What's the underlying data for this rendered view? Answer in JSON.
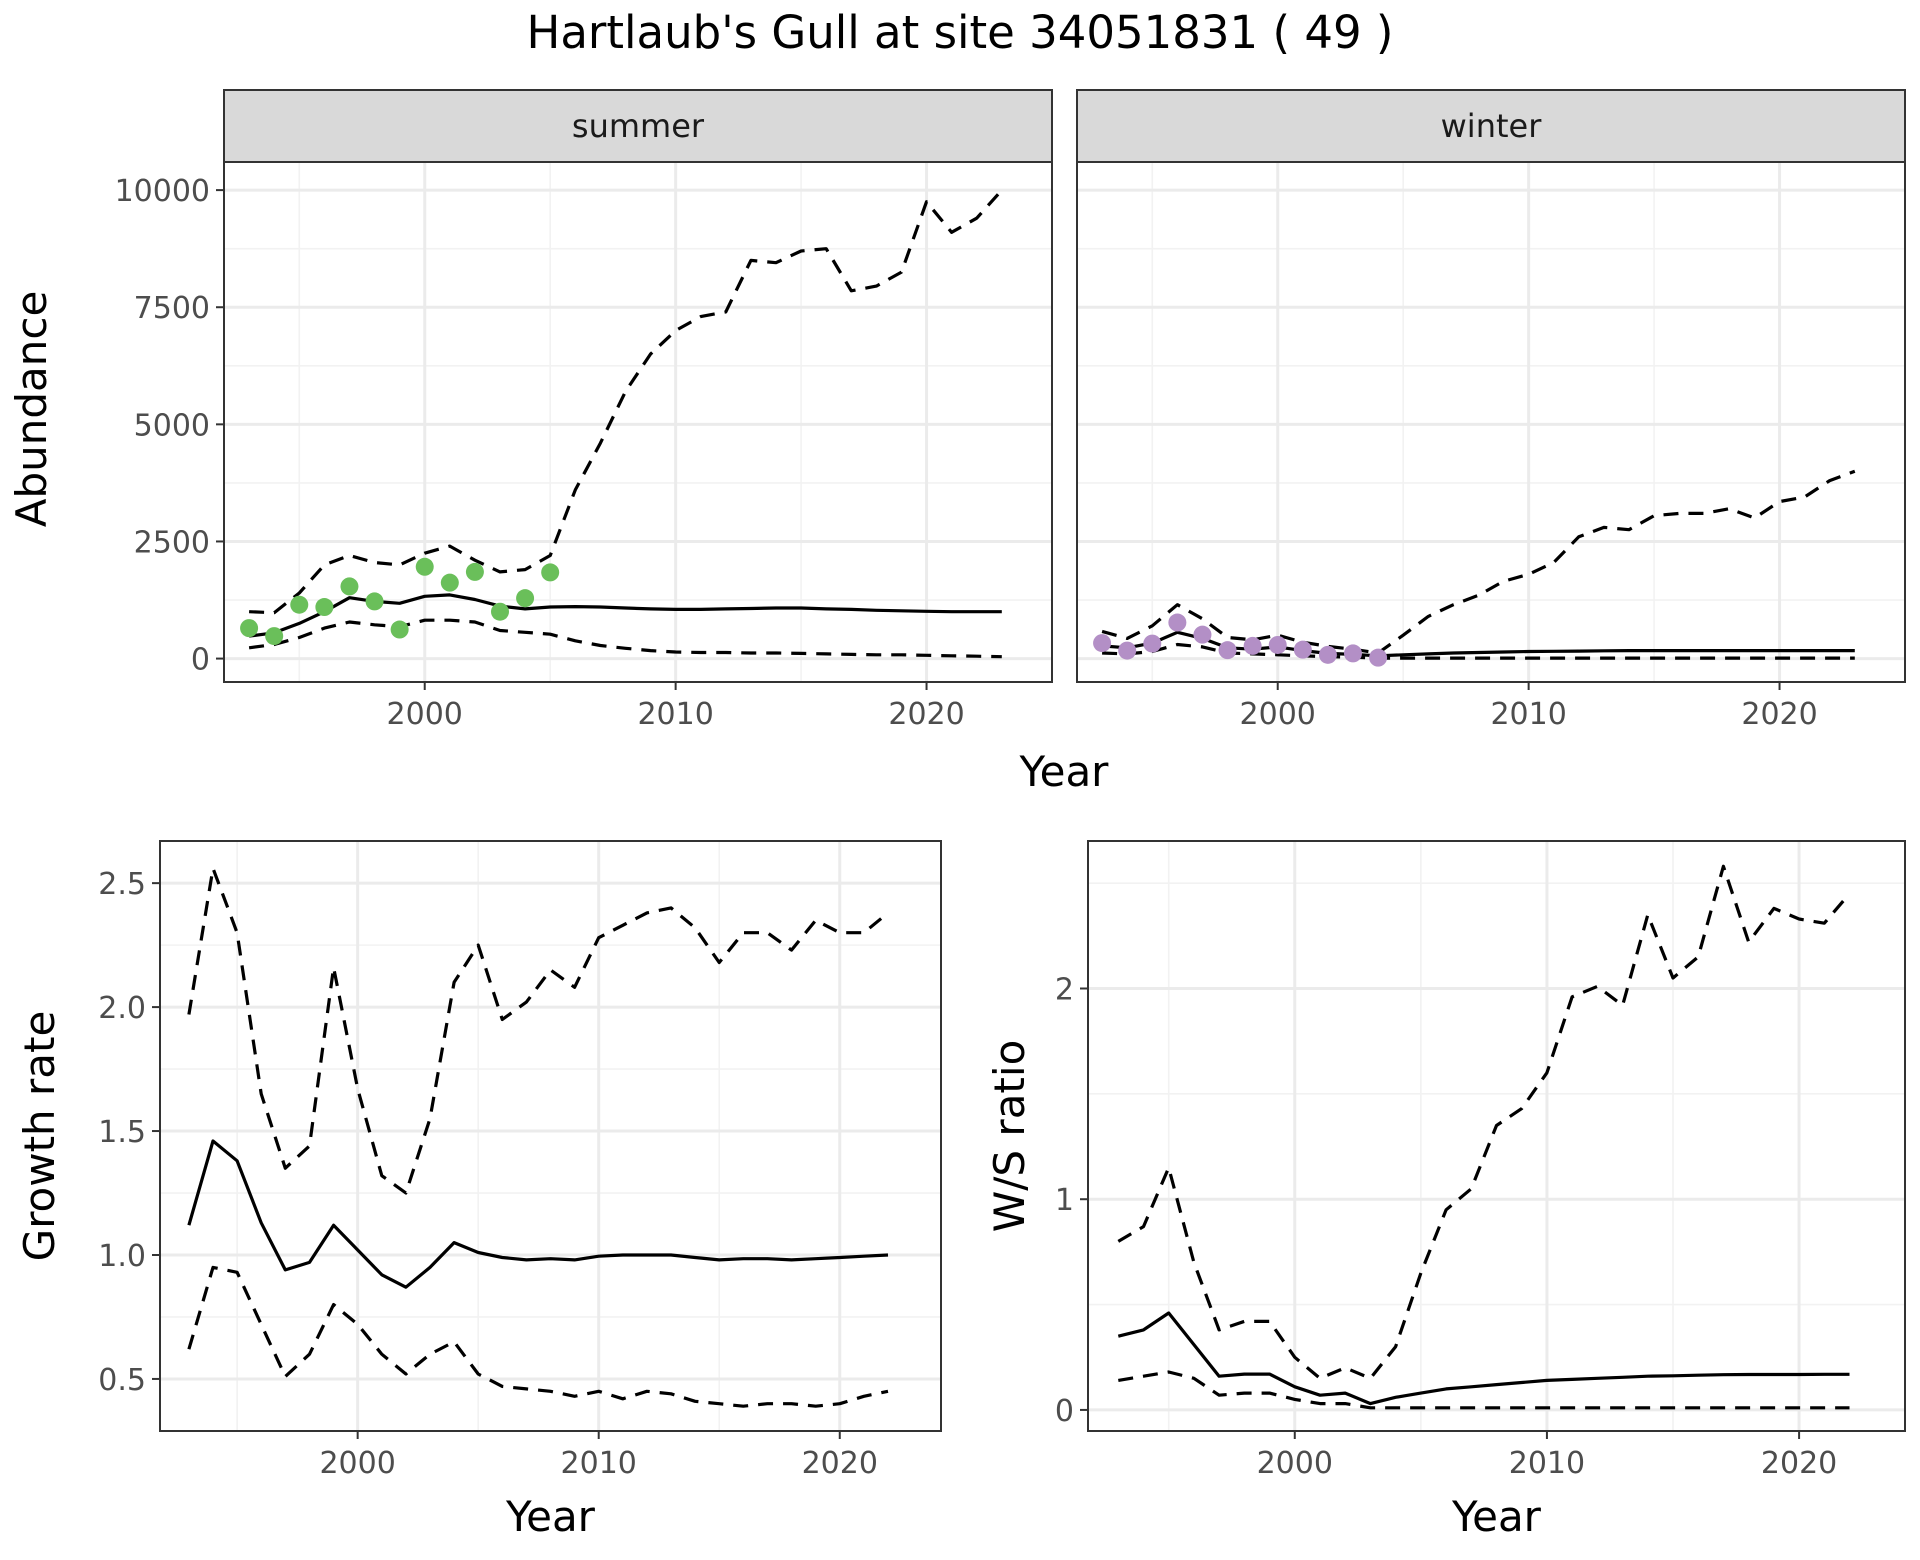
{
  "title": "Hartlaub's Gull at site 34051831 ( 49 )",
  "colors": {
    "summer_points": "#6abf5a",
    "winter_points": "#b38fc6",
    "lines": "#000000",
    "strip": "#d9d9d9"
  },
  "chart_data": [
    {
      "type": "line",
      "id": "summer",
      "strip_label": "summer",
      "xlabel": "Year",
      "ylabel": "Abundance",
      "xlim": [
        1992,
        2025
      ],
      "ylim": [
        -500,
        10600
      ],
      "xticks": [
        2000,
        2010,
        2020
      ],
      "yticks": [
        0,
        2500,
        5000,
        7500,
        10000
      ],
      "grid": true,
      "x": [
        1993,
        1994,
        1995,
        1996,
        1997,
        1998,
        1999,
        2000,
        2001,
        2002,
        2003,
        2004,
        2005,
        2006,
        2007,
        2008,
        2009,
        2010,
        2011,
        2012,
        2013,
        2014,
        2015,
        2016,
        2017,
        2018,
        2019,
        2020,
        2021,
        2022,
        2023
      ],
      "series": [
        {
          "role": "upper",
          "values": [
            1000,
            980,
            1400,
            2000,
            2200,
            2050,
            2000,
            2250,
            2400,
            2100,
            1850,
            1900,
            2200,
            3600,
            4600,
            5700,
            6500,
            7000,
            7300,
            7400,
            8500,
            8450,
            8700,
            8750,
            7850,
            7950,
            8250,
            9750,
            9100,
            9400,
            10000
          ]
        },
        {
          "role": "mean",
          "values": [
            480,
            550,
            750,
            1000,
            1300,
            1220,
            1180,
            1330,
            1360,
            1260,
            1120,
            1060,
            1100,
            1110,
            1100,
            1080,
            1060,
            1050,
            1050,
            1060,
            1070,
            1080,
            1080,
            1060,
            1050,
            1030,
            1020,
            1010,
            1000,
            1000,
            1000
          ]
        },
        {
          "role": "lower",
          "values": [
            230,
            300,
            450,
            650,
            780,
            720,
            680,
            820,
            820,
            780,
            600,
            560,
            520,
            380,
            280,
            220,
            170,
            140,
            130,
            130,
            120,
            120,
            110,
            100,
            90,
            80,
            80,
            70,
            60,
            50,
            40
          ]
        }
      ],
      "points": {
        "x": [
          1993,
          1994,
          1995,
          1996,
          1997,
          1998,
          1999,
          2000,
          2001,
          2002,
          2003,
          2004,
          2005
        ],
        "y": [
          650,
          480,
          1150,
          1100,
          1540,
          1220,
          620,
          1960,
          1620,
          1850,
          1000,
          1290,
          1840
        ]
      }
    },
    {
      "type": "line",
      "id": "winter",
      "strip_label": "winter",
      "xlabel": "Year",
      "ylabel": "Abundance",
      "xlim": [
        1992,
        2025
      ],
      "ylim": [
        -500,
        10600
      ],
      "xticks": [
        2000,
        2010,
        2020
      ],
      "yticks": [
        0,
        2500,
        5000,
        7500,
        10000
      ],
      "grid": true,
      "x": [
        1993,
        1994,
        1995,
        1996,
        1997,
        1998,
        1999,
        2000,
        2001,
        2002,
        2003,
        2004,
        2005,
        2006,
        2007,
        2008,
        2009,
        2010,
        2011,
        2012,
        2013,
        2014,
        2015,
        2016,
        2017,
        2018,
        2019,
        2020,
        2021,
        2022,
        2023
      ],
      "series": [
        {
          "role": "upper",
          "values": [
            580,
            430,
            700,
            1150,
            850,
            450,
            400,
            500,
            350,
            260,
            200,
            120,
            500,
            900,
            1150,
            1350,
            1650,
            1800,
            2050,
            2600,
            2800,
            2750,
            3050,
            3100,
            3100,
            3200,
            3000,
            3350,
            3450,
            3800,
            4000
          ]
        },
        {
          "role": "mean",
          "values": [
            270,
            230,
            330,
            560,
            430,
            230,
            200,
            250,
            170,
            110,
            90,
            60,
            80,
            100,
            120,
            130,
            140,
            150,
            155,
            160,
            165,
            170,
            170,
            170,
            170,
            170,
            170,
            170,
            170,
            170,
            170
          ]
        },
        {
          "role": "lower",
          "values": [
            120,
            100,
            150,
            300,
            250,
            120,
            100,
            80,
            60,
            40,
            30,
            10,
            10,
            10,
            10,
            10,
            10,
            10,
            10,
            10,
            10,
            10,
            10,
            10,
            10,
            10,
            10,
            10,
            10,
            10,
            10
          ]
        }
      ],
      "points": {
        "x": [
          1993,
          1994,
          1995,
          1996,
          1997,
          1998,
          1999,
          2000,
          2001,
          2002,
          2003,
          2004
        ],
        "y": [
          330,
          170,
          320,
          770,
          510,
          180,
          270,
          290,
          190,
          80,
          110,
          20
        ]
      }
    },
    {
      "type": "line",
      "id": "growth",
      "xlabel": "Year",
      "ylabel": "Growth rate",
      "xlim": [
        1991.8,
        2024.2
      ],
      "ylim": [
        0.29,
        2.67
      ],
      "xticks": [
        2000,
        2010,
        2020
      ],
      "yticks": [
        0.5,
        1.0,
        1.5,
        2.0,
        2.5
      ],
      "ytick_labels": [
        "0.5",
        "1.0",
        "1.5",
        "2.0",
        "2.5"
      ],
      "grid": true,
      "x": [
        1993,
        1994,
        1995,
        1996,
        1997,
        1998,
        1999,
        2000,
        2001,
        2002,
        2003,
        2004,
        2005,
        2006,
        2007,
        2008,
        2009,
        2010,
        2011,
        2012,
        2013,
        2014,
        2015,
        2016,
        2017,
        2018,
        2019,
        2020,
        2021,
        2022
      ],
      "series": [
        {
          "role": "upper",
          "values": [
            1.97,
            2.56,
            2.3,
            1.65,
            1.35,
            1.44,
            2.16,
            1.67,
            1.32,
            1.25,
            1.55,
            2.1,
            2.25,
            1.95,
            2.02,
            2.15,
            2.08,
            2.28,
            2.33,
            2.38,
            2.4,
            2.32,
            2.18,
            2.3,
            2.3,
            2.23,
            2.35,
            2.3,
            2.3,
            2.38
          ]
        },
        {
          "role": "mean",
          "values": [
            1.12,
            1.46,
            1.38,
            1.13,
            0.94,
            0.97,
            1.12,
            1.02,
            0.92,
            0.87,
            0.95,
            1.05,
            1.01,
            0.99,
            0.98,
            0.985,
            0.98,
            0.995,
            1.0,
            1.0,
            1.0,
            0.99,
            0.98,
            0.985,
            0.985,
            0.98,
            0.985,
            0.99,
            0.995,
            1.0
          ]
        },
        {
          "role": "lower",
          "values": [
            0.62,
            0.95,
            0.93,
            0.72,
            0.51,
            0.6,
            0.8,
            0.72,
            0.6,
            0.52,
            0.6,
            0.65,
            0.52,
            0.47,
            0.46,
            0.45,
            0.43,
            0.45,
            0.42,
            0.45,
            0.44,
            0.41,
            0.4,
            0.39,
            0.4,
            0.4,
            0.39,
            0.4,
            0.43,
            0.45
          ]
        }
      ]
    },
    {
      "type": "line",
      "id": "ratio",
      "xlabel": "Year",
      "ylabel": "W/S ratio",
      "xlim": [
        1991.8,
        2024.2
      ],
      "ylim": [
        -0.1,
        2.7
      ],
      "xticks": [
        2000,
        2010,
        2020
      ],
      "yticks": [
        0,
        1,
        2
      ],
      "ytick_labels": [
        "0",
        "1",
        "2"
      ],
      "grid": true,
      "x": [
        1993,
        1994,
        1995,
        1996,
        1997,
        1998,
        1999,
        2000,
        2001,
        2002,
        2003,
        2004,
        2005,
        2006,
        2007,
        2008,
        2009,
        2010,
        2011,
        2012,
        2013,
        2014,
        2015,
        2016,
        2017,
        2018,
        2019,
        2020,
        2021,
        2022
      ],
      "series": [
        {
          "role": "upper",
          "values": [
            0.8,
            0.87,
            1.15,
            0.7,
            0.38,
            0.42,
            0.42,
            0.25,
            0.15,
            0.2,
            0.15,
            0.3,
            0.65,
            0.95,
            1.05,
            1.35,
            1.43,
            1.6,
            1.96,
            2.01,
            1.92,
            2.35,
            2.05,
            2.15,
            2.58,
            2.22,
            2.38,
            2.33,
            2.31,
            2.45
          ]
        },
        {
          "role": "mean",
          "values": [
            0.35,
            0.38,
            0.46,
            0.31,
            0.16,
            0.17,
            0.17,
            0.11,
            0.07,
            0.08,
            0.03,
            0.06,
            0.08,
            0.1,
            0.11,
            0.12,
            0.13,
            0.14,
            0.145,
            0.15,
            0.155,
            0.16,
            0.162,
            0.165,
            0.167,
            0.168,
            0.168,
            0.168,
            0.169,
            0.169
          ]
        },
        {
          "role": "lower",
          "values": [
            0.14,
            0.16,
            0.18,
            0.15,
            0.07,
            0.08,
            0.08,
            0.05,
            0.03,
            0.03,
            0.01,
            0.01,
            0.01,
            0.01,
            0.01,
            0.01,
            0.01,
            0.01,
            0.01,
            0.01,
            0.01,
            0.01,
            0.01,
            0.01,
            0.01,
            0.01,
            0.01,
            0.01,
            0.01,
            0.01
          ]
        }
      ]
    }
  ]
}
